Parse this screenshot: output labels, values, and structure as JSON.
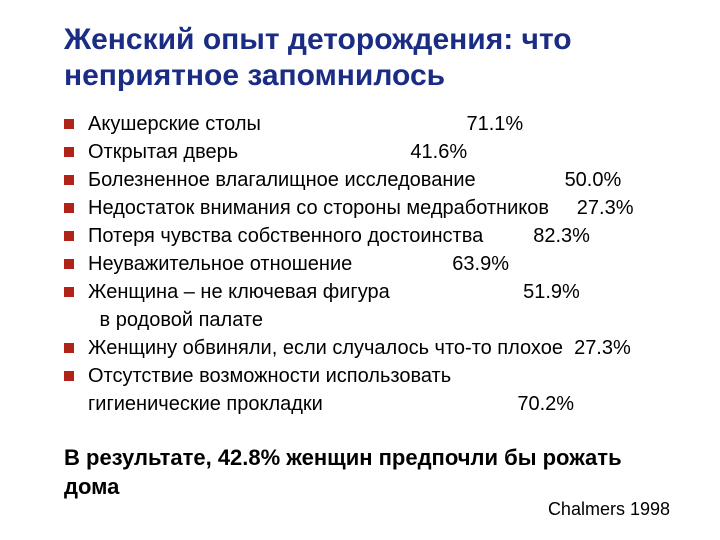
{
  "colors": {
    "title": "#1b2c84",
    "bullet": "#b02418",
    "text": "#000000",
    "background": "#ffffff"
  },
  "title": "Женский опыт деторождения: что неприятное запомнилось",
  "items": [
    {
      "text": "Акушерские столы                                     71.1%"
    },
    {
      "text": "Открытая дверь                               41.6%"
    },
    {
      "text": "Болезненное влагалищное исследование                50.0%"
    },
    {
      "text": "Недостаток внимания со стороны медработников     27.3%"
    },
    {
      "text": "Потеря чувства собственного достоинства         82.3%"
    },
    {
      "text": "Неуважительное отношение                  63.9%"
    },
    {
      "text": "Женщина – не ключевая фигура                        51.9%"
    },
    {
      "text": " в родовой палате",
      "cont": true,
      "clazz": "cont"
    },
    {
      "text": "Женщину обвиняли, если случалось что-то плохое  27.3%"
    },
    {
      "text": "Отсутствие возможности использовать"
    },
    {
      "text": "гигиенические прокладки                                   70.2%",
      "cont": true,
      "clazz": "cont0"
    }
  ],
  "conclusion": "В результате, 42.8% женщин предпочли бы рожать дома",
  "citation": "Chalmers 1998"
}
